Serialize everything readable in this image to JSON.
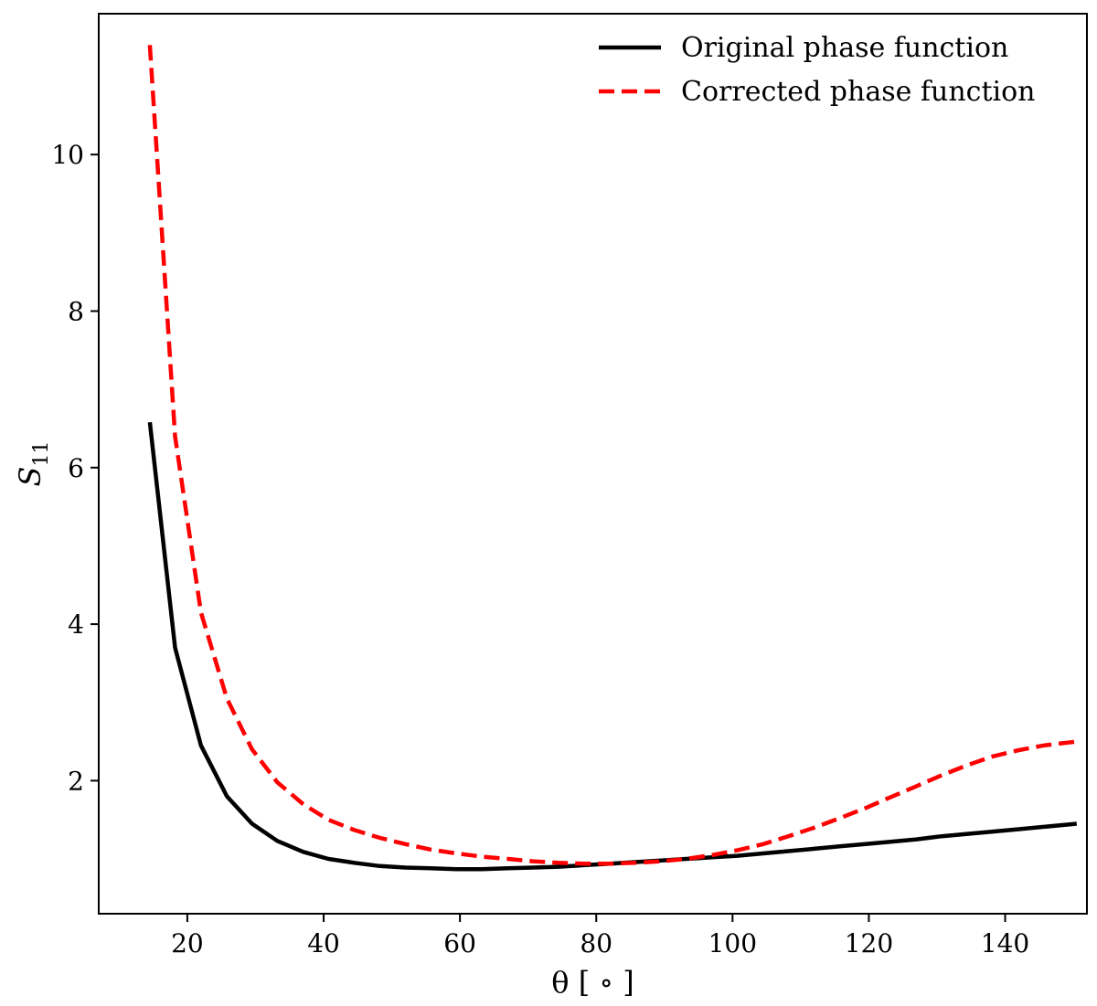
{
  "chart_data": {
    "type": "line",
    "title": "",
    "xlabel": "θ [ ∘ ]",
    "ylabel": "S11",
    "ylabel_main": "S",
    "ylabel_sub": "11",
    "xlim": [
      7,
      152
    ],
    "ylim": [
      0.3,
      11.8
    ],
    "xticks": [
      20,
      40,
      60,
      80,
      100,
      120,
      140
    ],
    "yticks": [
      2,
      4,
      6,
      8,
      10
    ],
    "grid": false,
    "legend_position": "top-right",
    "series": [
      {
        "name": "Original phase function",
        "color": "#000000",
        "style": "solid",
        "x": [
          14.5,
          18.2,
          22,
          25.8,
          29.5,
          33.2,
          37,
          40.7,
          44.5,
          48.2,
          52,
          55.7,
          59.5,
          63.2,
          67,
          70.7,
          74.5,
          78.2,
          82,
          85.7,
          89.5,
          93.2,
          97,
          100.7,
          104.5,
          108.2,
          112,
          115.7,
          119.5,
          123.2,
          127,
          130.7,
          134.5,
          138.2,
          142,
          145.7,
          150.5
        ],
        "y": [
          6.58,
          3.7,
          2.45,
          1.8,
          1.45,
          1.23,
          1.09,
          1.0,
          0.95,
          0.91,
          0.89,
          0.88,
          0.87,
          0.87,
          0.88,
          0.89,
          0.9,
          0.92,
          0.94,
          0.96,
          0.98,
          1.0,
          1.02,
          1.04,
          1.07,
          1.1,
          1.13,
          1.16,
          1.19,
          1.22,
          1.25,
          1.29,
          1.32,
          1.35,
          1.38,
          1.41,
          1.45
        ]
      },
      {
        "name": "Corrected phase function",
        "color": "#ff0000",
        "style": "dashed",
        "x": [
          14.5,
          18.2,
          22,
          25.8,
          29.5,
          33.2,
          37,
          40.7,
          44.5,
          48.2,
          52,
          55.7,
          59.5,
          63.2,
          67,
          70.7,
          74.5,
          78.2,
          82,
          85.7,
          89.5,
          93.2,
          97,
          100.7,
          104.5,
          108.2,
          112,
          115.7,
          119.5,
          123.2,
          127,
          130.7,
          134.5,
          138.2,
          142,
          145.7,
          150.5
        ],
        "y": [
          11.4,
          6.4,
          4.15,
          3.05,
          2.4,
          1.98,
          1.7,
          1.5,
          1.37,
          1.27,
          1.19,
          1.12,
          1.07,
          1.03,
          1.0,
          0.97,
          0.95,
          0.94,
          0.94,
          0.95,
          0.97,
          1.0,
          1.05,
          1.11,
          1.19,
          1.29,
          1.4,
          1.52,
          1.65,
          1.79,
          1.93,
          2.07,
          2.2,
          2.31,
          2.39,
          2.45,
          2.5
        ]
      }
    ]
  }
}
